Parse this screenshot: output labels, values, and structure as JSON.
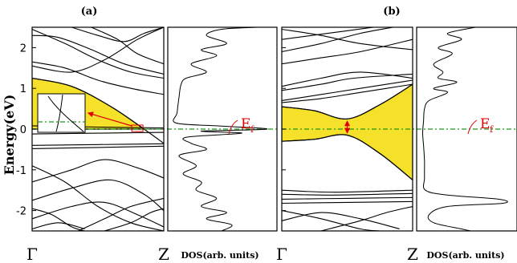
{
  "chart_data": {
    "type": "line",
    "ylabel": "Energy(eV)",
    "ylim": [
      -2.5,
      2.5
    ],
    "yticks": [
      -2,
      -1,
      0,
      1,
      2
    ],
    "ytick_labels": [
      "-2",
      "-1",
      "0",
      "1",
      "2"
    ],
    "fermi_level": 0,
    "fermi_label": "E",
    "fermi_label_sub": "f",
    "dos_xlabel": "DOS(arb. units)",
    "k_points": [
      "Γ",
      "Z"
    ],
    "panels": [
      {
        "label": "(a)",
        "highlight_region": {
          "E_top_at_gamma": 1.25,
          "E_bottom": 0.0,
          "closes_at_k": 0.83
        },
        "bands": [
          [
            [
              0,
              2.45
            ],
            [
              0.25,
              2.1
            ],
            [
              0.5,
              1.7
            ],
            [
              0.75,
              1.4
            ],
            [
              1,
              1.25
            ]
          ],
          [
            [
              0,
              2.3
            ],
            [
              0.2,
              2.25
            ],
            [
              0.45,
              1.95
            ],
            [
              0.7,
              1.6
            ],
            [
              1,
              1.35
            ]
          ],
          [
            [
              0,
              1.65
            ],
            [
              0.25,
              1.5
            ],
            [
              0.5,
              1.2
            ],
            [
              0.75,
              1.0
            ],
            [
              1,
              0.85
            ]
          ],
          [
            [
              0,
              1.55
            ],
            [
              0.3,
              1.4
            ],
            [
              0.55,
              1.7
            ],
            [
              0.8,
              2.2
            ],
            [
              1,
              2.5
            ]
          ],
          [
            [
              0.3,
              2.5
            ],
            [
              0.5,
              2.3
            ],
            [
              0.7,
              2.15
            ],
            [
              0.85,
              2.35
            ],
            [
              1,
              2.5
            ]
          ],
          [
            [
              0.45,
              2.5
            ],
            [
              0.65,
              2.2
            ],
            [
              0.8,
              1.85
            ],
            [
              1,
              1.6
            ]
          ],
          [
            [
              0,
              1.25
            ],
            [
              0.3,
              1.05
            ],
            [
              0.6,
              0.55
            ],
            [
              0.85,
              0.0
            ],
            [
              1,
              -0.35
            ]
          ],
          [
            [
              0,
              0.08
            ],
            [
              0.5,
              0.05
            ],
            [
              1,
              0.03
            ]
          ],
          [
            [
              0,
              0.0
            ],
            [
              0.5,
              0.0
            ],
            [
              1,
              0.0
            ]
          ],
          [
            [
              0,
              -0.12
            ],
            [
              0.5,
              -0.1
            ],
            [
              1,
              -0.08
            ]
          ],
          [
            [
              0,
              -0.4
            ],
            [
              0.5,
              -0.38
            ],
            [
              1,
              -0.36
            ]
          ],
          [
            [
              0,
              -0.48
            ],
            [
              0.5,
              -0.45
            ],
            [
              1,
              -0.42
            ]
          ],
          [
            [
              0,
              -0.9
            ],
            [
              0.25,
              -1.3
            ],
            [
              0.5,
              -1.9
            ],
            [
              0.75,
              -2.3
            ],
            [
              1,
              -2.5
            ]
          ],
          [
            [
              0,
              -1.3
            ],
            [
              0.3,
              -1.0
            ],
            [
              0.55,
              -0.75
            ],
            [
              0.8,
              -0.95
            ],
            [
              1,
              -1.2
            ]
          ],
          [
            [
              0,
              -1.75
            ],
            [
              0.3,
              -1.45
            ],
            [
              0.6,
              -1.25
            ],
            [
              0.85,
              -1.6
            ],
            [
              1,
              -2.0
            ]
          ],
          [
            [
              0,
              -2.2
            ],
            [
              0.3,
              -1.9
            ],
            [
              0.55,
              -1.8
            ],
            [
              0.8,
              -2.1
            ],
            [
              1,
              -2.4
            ]
          ],
          [
            [
              0.35,
              -2.5
            ],
            [
              0.55,
              -2.2
            ],
            [
              0.75,
              -1.9
            ],
            [
              1,
              -1.7
            ]
          ],
          [
            [
              0.55,
              -2.5
            ],
            [
              0.75,
              -2.3
            ],
            [
              0.9,
              -2.05
            ],
            [
              1,
              -1.95
            ]
          ],
          [
            [
              0,
              -2.45
            ],
            [
              0.2,
              -2.3
            ],
            [
              0.4,
              -2.45
            ]
          ],
          [
            [
              0,
              -1.95
            ],
            [
              0.15,
              -2.1
            ],
            [
              0.3,
              -2.4
            ],
            [
              0.4,
              -2.5
            ]
          ]
        ],
        "dos": [
          [
            0.85,
            2.5
          ],
          [
            0.5,
            2.45
          ],
          [
            0.35,
            2.3
          ],
          [
            0.55,
            2.1
          ],
          [
            0.3,
            1.95
          ],
          [
            0.45,
            1.8
          ],
          [
            0.2,
            1.6
          ],
          [
            0.35,
            1.4
          ],
          [
            0.15,
            1.25
          ],
          [
            0.1,
            1.1
          ],
          [
            0.08,
            0.8
          ],
          [
            0.06,
            0.4
          ],
          [
            0.05,
            0.15
          ],
          [
            0.45,
            0.08
          ],
          [
            0.95,
            0.0
          ],
          [
            0.3,
            -0.05
          ],
          [
            0.7,
            -0.1
          ],
          [
            0.15,
            -0.2
          ],
          [
            0.2,
            -0.35
          ],
          [
            0.35,
            -0.5
          ],
          [
            0.08,
            -0.65
          ],
          [
            0.25,
            -0.9
          ],
          [
            0.12,
            -1.1
          ],
          [
            0.3,
            -1.3
          ],
          [
            0.25,
            -1.5
          ],
          [
            0.45,
            -1.7
          ],
          [
            0.3,
            -1.9
          ],
          [
            0.55,
            -2.05
          ],
          [
            0.35,
            -2.2
          ],
          [
            0.6,
            -2.35
          ],
          [
            0.5,
            -2.5
          ]
        ]
      },
      {
        "label": "(b)",
        "highlight_region": {
          "E_top_at_gamma": 0.55,
          "E_bottom_at_gamma": -0.3,
          "E_top_at_Z": 1.1,
          "E_bottom_at_Z": -1.25,
          "min_gap_at_k": 0.5
        },
        "bands": [
          [
            [
              0,
              2.45
            ],
            [
              0.3,
              2.3
            ],
            [
              0.6,
              2.1
            ],
            [
              1,
              1.95
            ]
          ],
          [
            [
              0,
              2.2
            ],
            [
              0.35,
              2.35
            ],
            [
              0.7,
              2.5
            ]
          ],
          [
            [
              0,
              1.9
            ],
            [
              0.3,
              2.1
            ],
            [
              0.6,
              2.35
            ],
            [
              0.85,
              2.5
            ]
          ],
          [
            [
              0,
              1.6
            ],
            [
              0.3,
              1.75
            ],
            [
              0.6,
              1.9
            ],
            [
              1,
              2.2
            ]
          ],
          [
            [
              0,
              1.05
            ],
            [
              0.3,
              1.25
            ],
            [
              0.6,
              1.4
            ],
            [
              1,
              1.25
            ]
          ],
          [
            [
              0,
              0.95
            ],
            [
              0.3,
              1.1
            ],
            [
              0.55,
              1.25
            ],
            [
              1,
              1.35
            ]
          ],
          [
            [
              0,
              0.7
            ],
            [
              0.3,
              0.85
            ],
            [
              0.6,
              1.0
            ],
            [
              1,
              1.2
            ]
          ],
          [
            [
              0,
              0.65
            ],
            [
              0.3,
              0.75
            ],
            [
              0.6,
              0.9
            ],
            [
              1,
              1.1
            ]
          ],
          [
            [
              0,
              0.55
            ],
            [
              0.25,
              0.45
            ],
            [
              0.5,
              0.25
            ],
            [
              0.75,
              0.6
            ],
            [
              1,
              1.1
            ]
          ],
          [
            [
              0,
              -0.3
            ],
            [
              0.25,
              -0.25
            ],
            [
              0.5,
              -0.15
            ],
            [
              0.75,
              -0.6
            ],
            [
              1,
              -1.25
            ]
          ],
          [
            [
              0,
              -1.5
            ],
            [
              0.4,
              -1.55
            ],
            [
              1,
              -1.5
            ]
          ],
          [
            [
              0,
              -1.6
            ],
            [
              0.4,
              -1.62
            ],
            [
              1,
              -1.58
            ]
          ],
          [
            [
              0,
              -1.72
            ],
            [
              0.5,
              -1.7
            ],
            [
              1,
              -1.68
            ]
          ],
          [
            [
              0,
              -1.82
            ],
            [
              0.5,
              -1.8
            ],
            [
              1,
              -1.78
            ]
          ],
          [
            [
              0,
              -2.0
            ],
            [
              0.3,
              -2.2
            ],
            [
              0.6,
              -2.45
            ],
            [
              0.75,
              -2.5
            ]
          ],
          [
            [
              0,
              -2.25
            ],
            [
              0.3,
              -2.05
            ],
            [
              0.6,
              -2.2
            ],
            [
              0.9,
              -2.45
            ]
          ],
          [
            [
              0.3,
              -2.5
            ],
            [
              0.6,
              -2.25
            ],
            [
              0.8,
              -2.05
            ],
            [
              1,
              -1.9
            ]
          ]
        ],
        "dos": [
          [
            0.6,
            2.5
          ],
          [
            0.3,
            2.35
          ],
          [
            0.45,
            2.2
          ],
          [
            0.2,
            2.0
          ],
          [
            0.35,
            1.85
          ],
          [
            0.15,
            1.6
          ],
          [
            0.25,
            1.4
          ],
          [
            0.2,
            1.25
          ],
          [
            0.4,
            1.15
          ],
          [
            0.15,
            1.0
          ],
          [
            0.3,
            0.9
          ],
          [
            0.1,
            0.7
          ],
          [
            0.05,
            0.5
          ],
          [
            0.04,
            0.2
          ],
          [
            0.03,
            -0.1
          ],
          [
            0.04,
            -0.4
          ],
          [
            0.05,
            -0.8
          ],
          [
            0.05,
            -1.2
          ],
          [
            0.06,
            -1.5
          ],
          [
            0.3,
            -1.62
          ],
          [
            0.85,
            -1.72
          ],
          [
            0.9,
            -1.82
          ],
          [
            0.3,
            -1.9
          ],
          [
            0.1,
            -2.1
          ],
          [
            0.15,
            -2.3
          ],
          [
            0.45,
            -2.45
          ],
          [
            0.55,
            -2.5
          ]
        ]
      }
    ]
  }
}
